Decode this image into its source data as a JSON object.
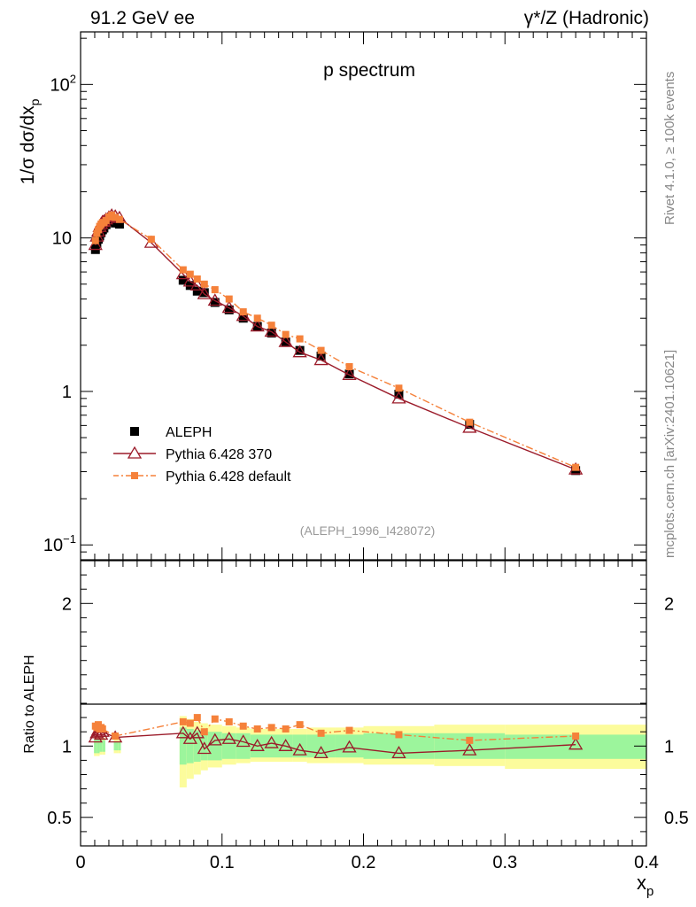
{
  "header": {
    "left_label": "91.2 GeV ee",
    "right_label": "γ*/Z (Hadronic)"
  },
  "side_labels": {
    "rivet": "Rivet 4.1.0, ≥ 100k events",
    "mcplots": "mcplots.cern.ch [arXiv:2401.10621]"
  },
  "colors": {
    "data": "#000000",
    "pythia370": "#9b1b2a",
    "pythia_default": "#f5813a",
    "band_inner": "#9cf59c",
    "band_outer": "#fcfc9c"
  },
  "chart_data": [
    {
      "type": "scatter",
      "title": "p spectrum",
      "xlabel": "x",
      "xlabel_sub": "p",
      "ylabel": "1/σ  dσ/dx",
      "ylabel_sub": "p",
      "yscale": "log",
      "xlim": [
        0,
        0.4
      ],
      "ylim": [
        0.08,
        220
      ],
      "y_ticks": [
        {
          "value": 100,
          "label": "10",
          "sup": "2"
        },
        {
          "value": 10,
          "label": "10",
          "sup": ""
        },
        {
          "value": 1,
          "label": "1",
          "sup": ""
        },
        {
          "value": 0.1,
          "label": "10",
          "sup": "−1"
        }
      ],
      "x_ticks": [
        {
          "value": 0,
          "label": "0"
        },
        {
          "value": 0.1,
          "label": "0.1"
        },
        {
          "value": 0.2,
          "label": "0.2"
        },
        {
          "value": 0.3,
          "label": "0.3"
        },
        {
          "value": 0.4,
          "label": "0.4"
        }
      ],
      "watermark": "(ALEPH_1996_I428072)",
      "legend": [
        {
          "name": "ALEPH",
          "style": "data"
        },
        {
          "name": "Pythia 6.428 370",
          "style": "pythia370"
        },
        {
          "name": "Pythia 6.428 default",
          "style": "pythia_default"
        }
      ],
      "legend_position": "bottom-left",
      "series": [
        {
          "name": "ALEPH",
          "style": "data",
          "x": [
            0.0105,
            0.0115,
            0.0125,
            0.0135,
            0.0145,
            0.0155,
            0.0165,
            0.018,
            0.02,
            0.022,
            0.0245,
            0.0275,
            0.0725,
            0.0775,
            0.0825,
            0.0875,
            0.095,
            0.105,
            0.115,
            0.125,
            0.135,
            0.145,
            0.155,
            0.17,
            0.19,
            0.225,
            0.275,
            0.35
          ],
          "values": [
            8.4,
            9.2,
            9.8,
            10.3,
            10.8,
            11.3,
            11.6,
            12.2,
            12.8,
            13.0,
            12.5,
            12.3,
            5.3,
            4.9,
            4.5,
            4.4,
            3.8,
            3.4,
            3.0,
            2.65,
            2.4,
            2.1,
            1.85,
            1.7,
            1.3,
            0.96,
            0.61,
            0.305
          ]
        },
        {
          "name": "Pythia 6.428 370",
          "style": "pythia370",
          "x": [
            0.0105,
            0.0115,
            0.0125,
            0.0135,
            0.0145,
            0.0155,
            0.0165,
            0.018,
            0.02,
            0.022,
            0.0245,
            0.0275,
            0.05,
            0.0725,
            0.0775,
            0.0825,
            0.0875,
            0.095,
            0.105,
            0.115,
            0.125,
            0.135,
            0.145,
            0.155,
            0.17,
            0.19,
            0.225,
            0.275,
            0.35
          ],
          "values": [
            9.0,
            10.2,
            11.0,
            11.8,
            12.3,
            12.7,
            12.8,
            13.2,
            13.6,
            14.0,
            13.8,
            13.5,
            9.3,
            5.8,
            5.2,
            4.9,
            4.3,
            3.9,
            3.5,
            3.1,
            2.65,
            2.45,
            2.1,
            1.8,
            1.6,
            1.28,
            0.9,
            0.58,
            0.31
          ]
        },
        {
          "name": "Pythia 6.428 default",
          "style": "pythia_default",
          "x": [
            0.0105,
            0.0115,
            0.0125,
            0.0135,
            0.0145,
            0.0155,
            0.0165,
            0.018,
            0.02,
            0.022,
            0.0245,
            0.0275,
            0.05,
            0.0725,
            0.0775,
            0.0825,
            0.0875,
            0.095,
            0.105,
            0.115,
            0.125,
            0.135,
            0.145,
            0.155,
            0.17,
            0.19,
            0.225,
            0.275,
            0.35
          ],
          "values": [
            9.6,
            10.7,
            11.3,
            11.9,
            12.3,
            12.6,
            12.6,
            13.0,
            13.7,
            14.1,
            13.6,
            13.2,
            9.8,
            6.2,
            5.8,
            5.4,
            5.0,
            4.6,
            4.0,
            3.3,
            3.0,
            2.7,
            2.35,
            2.2,
            1.85,
            1.45,
            1.05,
            0.63,
            0.32
          ]
        }
      ]
    },
    {
      "type": "scatter",
      "ylabel": "Ratio to ALEPH",
      "xlim": [
        0,
        0.4
      ],
      "ylim": [
        0.3,
        2.3
      ],
      "y_ticks_left": [
        {
          "value": 2,
          "label": "2"
        },
        {
          "value": 1,
          "label": "1"
        },
        {
          "value": 0.5,
          "label": "0.5"
        }
      ],
      "y_ticks_right": [
        {
          "value": 2,
          "label": "2"
        },
        {
          "value": 1,
          "label": "1"
        },
        {
          "value": 0.5,
          "label": "0.5"
        }
      ],
      "bands": [
        {
          "x_lo": 0.0095,
          "x_hi": 0.0115,
          "inner": [
            0.95,
            1.05
          ],
          "outer": [
            0.93,
            1.07
          ]
        },
        {
          "x_lo": 0.0115,
          "x_hi": 0.0135,
          "inner": [
            0.95,
            1.05
          ],
          "outer": [
            0.93,
            1.07
          ]
        },
        {
          "x_lo": 0.0135,
          "x_hi": 0.0155,
          "inner": [
            0.96,
            1.04
          ],
          "outer": [
            0.94,
            1.06
          ]
        },
        {
          "x_lo": 0.0155,
          "x_hi": 0.0175,
          "inner": [
            0.96,
            1.04
          ],
          "outer": [
            0.94,
            1.06
          ]
        },
        {
          "x_lo": 0.0235,
          "x_hi": 0.0265,
          "inner": [
            0.97,
            1.03
          ],
          "outer": [
            0.95,
            1.05
          ]
        },
        {
          "x_lo": 0.0265,
          "x_hi": 0.0285,
          "inner": [
            0.97,
            1.03
          ],
          "outer": [
            0.95,
            1.05
          ]
        },
        {
          "x_lo": 0.07,
          "x_hi": 0.075,
          "inner": [
            0.87,
            1.13
          ],
          "outer": [
            0.71,
            1.21
          ]
        },
        {
          "x_lo": 0.075,
          "x_hi": 0.08,
          "inner": [
            0.88,
            1.12
          ],
          "outer": [
            0.77,
            1.19
          ]
        },
        {
          "x_lo": 0.08,
          "x_hi": 0.085,
          "inner": [
            0.89,
            1.11
          ],
          "outer": [
            0.8,
            1.17
          ]
        },
        {
          "x_lo": 0.085,
          "x_hi": 0.09,
          "inner": [
            0.9,
            1.1
          ],
          "outer": [
            0.83,
            1.16
          ]
        },
        {
          "x_lo": 0.09,
          "x_hi": 0.1,
          "inner": [
            0.9,
            1.1
          ],
          "outer": [
            0.85,
            1.15
          ]
        },
        {
          "x_lo": 0.1,
          "x_hi": 0.11,
          "inner": [
            0.91,
            1.09
          ],
          "outer": [
            0.87,
            1.14
          ]
        },
        {
          "x_lo": 0.11,
          "x_hi": 0.12,
          "inner": [
            0.91,
            1.09
          ],
          "outer": [
            0.88,
            1.13
          ]
        },
        {
          "x_lo": 0.12,
          "x_hi": 0.15,
          "inner": [
            0.92,
            1.08
          ],
          "outer": [
            0.89,
            1.12
          ]
        },
        {
          "x_lo": 0.15,
          "x_hi": 0.16,
          "inner": [
            0.92,
            1.08
          ],
          "outer": [
            0.89,
            1.12
          ]
        },
        {
          "x_lo": 0.16,
          "x_hi": 0.18,
          "inner": [
            0.92,
            1.08
          ],
          "outer": [
            0.88,
            1.13
          ]
        },
        {
          "x_lo": 0.18,
          "x_hi": 0.2,
          "inner": [
            0.92,
            1.08
          ],
          "outer": [
            0.88,
            1.13
          ]
        },
        {
          "x_lo": 0.2,
          "x_hi": 0.25,
          "inner": [
            0.91,
            1.09
          ],
          "outer": [
            0.87,
            1.14
          ]
        },
        {
          "x_lo": 0.25,
          "x_hi": 0.3,
          "inner": [
            0.91,
            1.09
          ],
          "outer": [
            0.86,
            1.15
          ]
        },
        {
          "x_lo": 0.3,
          "x_hi": 0.4,
          "inner": [
            0.91,
            1.08
          ],
          "outer": [
            0.84,
            1.15
          ]
        }
      ],
      "series": [
        {
          "name": "Pythia 6.428 370",
          "style": "pythia370",
          "x": [
            0.0105,
            0.0115,
            0.0125,
            0.0135,
            0.0145,
            0.0155,
            0.0245,
            0.0725,
            0.0775,
            0.0825,
            0.0875,
            0.095,
            0.105,
            0.115,
            0.125,
            0.135,
            0.145,
            0.155,
            0.17,
            0.19,
            0.225,
            0.275,
            0.35
          ],
          "values": [
            1.06,
            1.09,
            1.11,
            1.1,
            1.08,
            1.1,
            1.06,
            1.09,
            1.05,
            1.09,
            0.98,
            1.04,
            1.05,
            1.03,
            1.0,
            1.02,
            1.0,
            0.97,
            0.95,
            0.99,
            0.95,
            0.97,
            1.01
          ]
        },
        {
          "name": "Pythia 6.428 default",
          "style": "pythia_default",
          "x": [
            0.0105,
            0.0115,
            0.0125,
            0.0135,
            0.0145,
            0.0155,
            0.0245,
            0.0725,
            0.0775,
            0.0825,
            0.0875,
            0.095,
            0.105,
            0.115,
            0.125,
            0.135,
            0.145,
            0.155,
            0.17,
            0.19,
            0.225,
            0.275,
            0.35
          ],
          "values": [
            1.14,
            1.13,
            1.15,
            1.12,
            1.13,
            1.12,
            1.07,
            1.17,
            1.16,
            1.2,
            1.1,
            1.19,
            1.17,
            1.14,
            1.12,
            1.13,
            1.12,
            1.15,
            1.09,
            1.11,
            1.08,
            1.04,
            1.07
          ]
        }
      ]
    }
  ]
}
